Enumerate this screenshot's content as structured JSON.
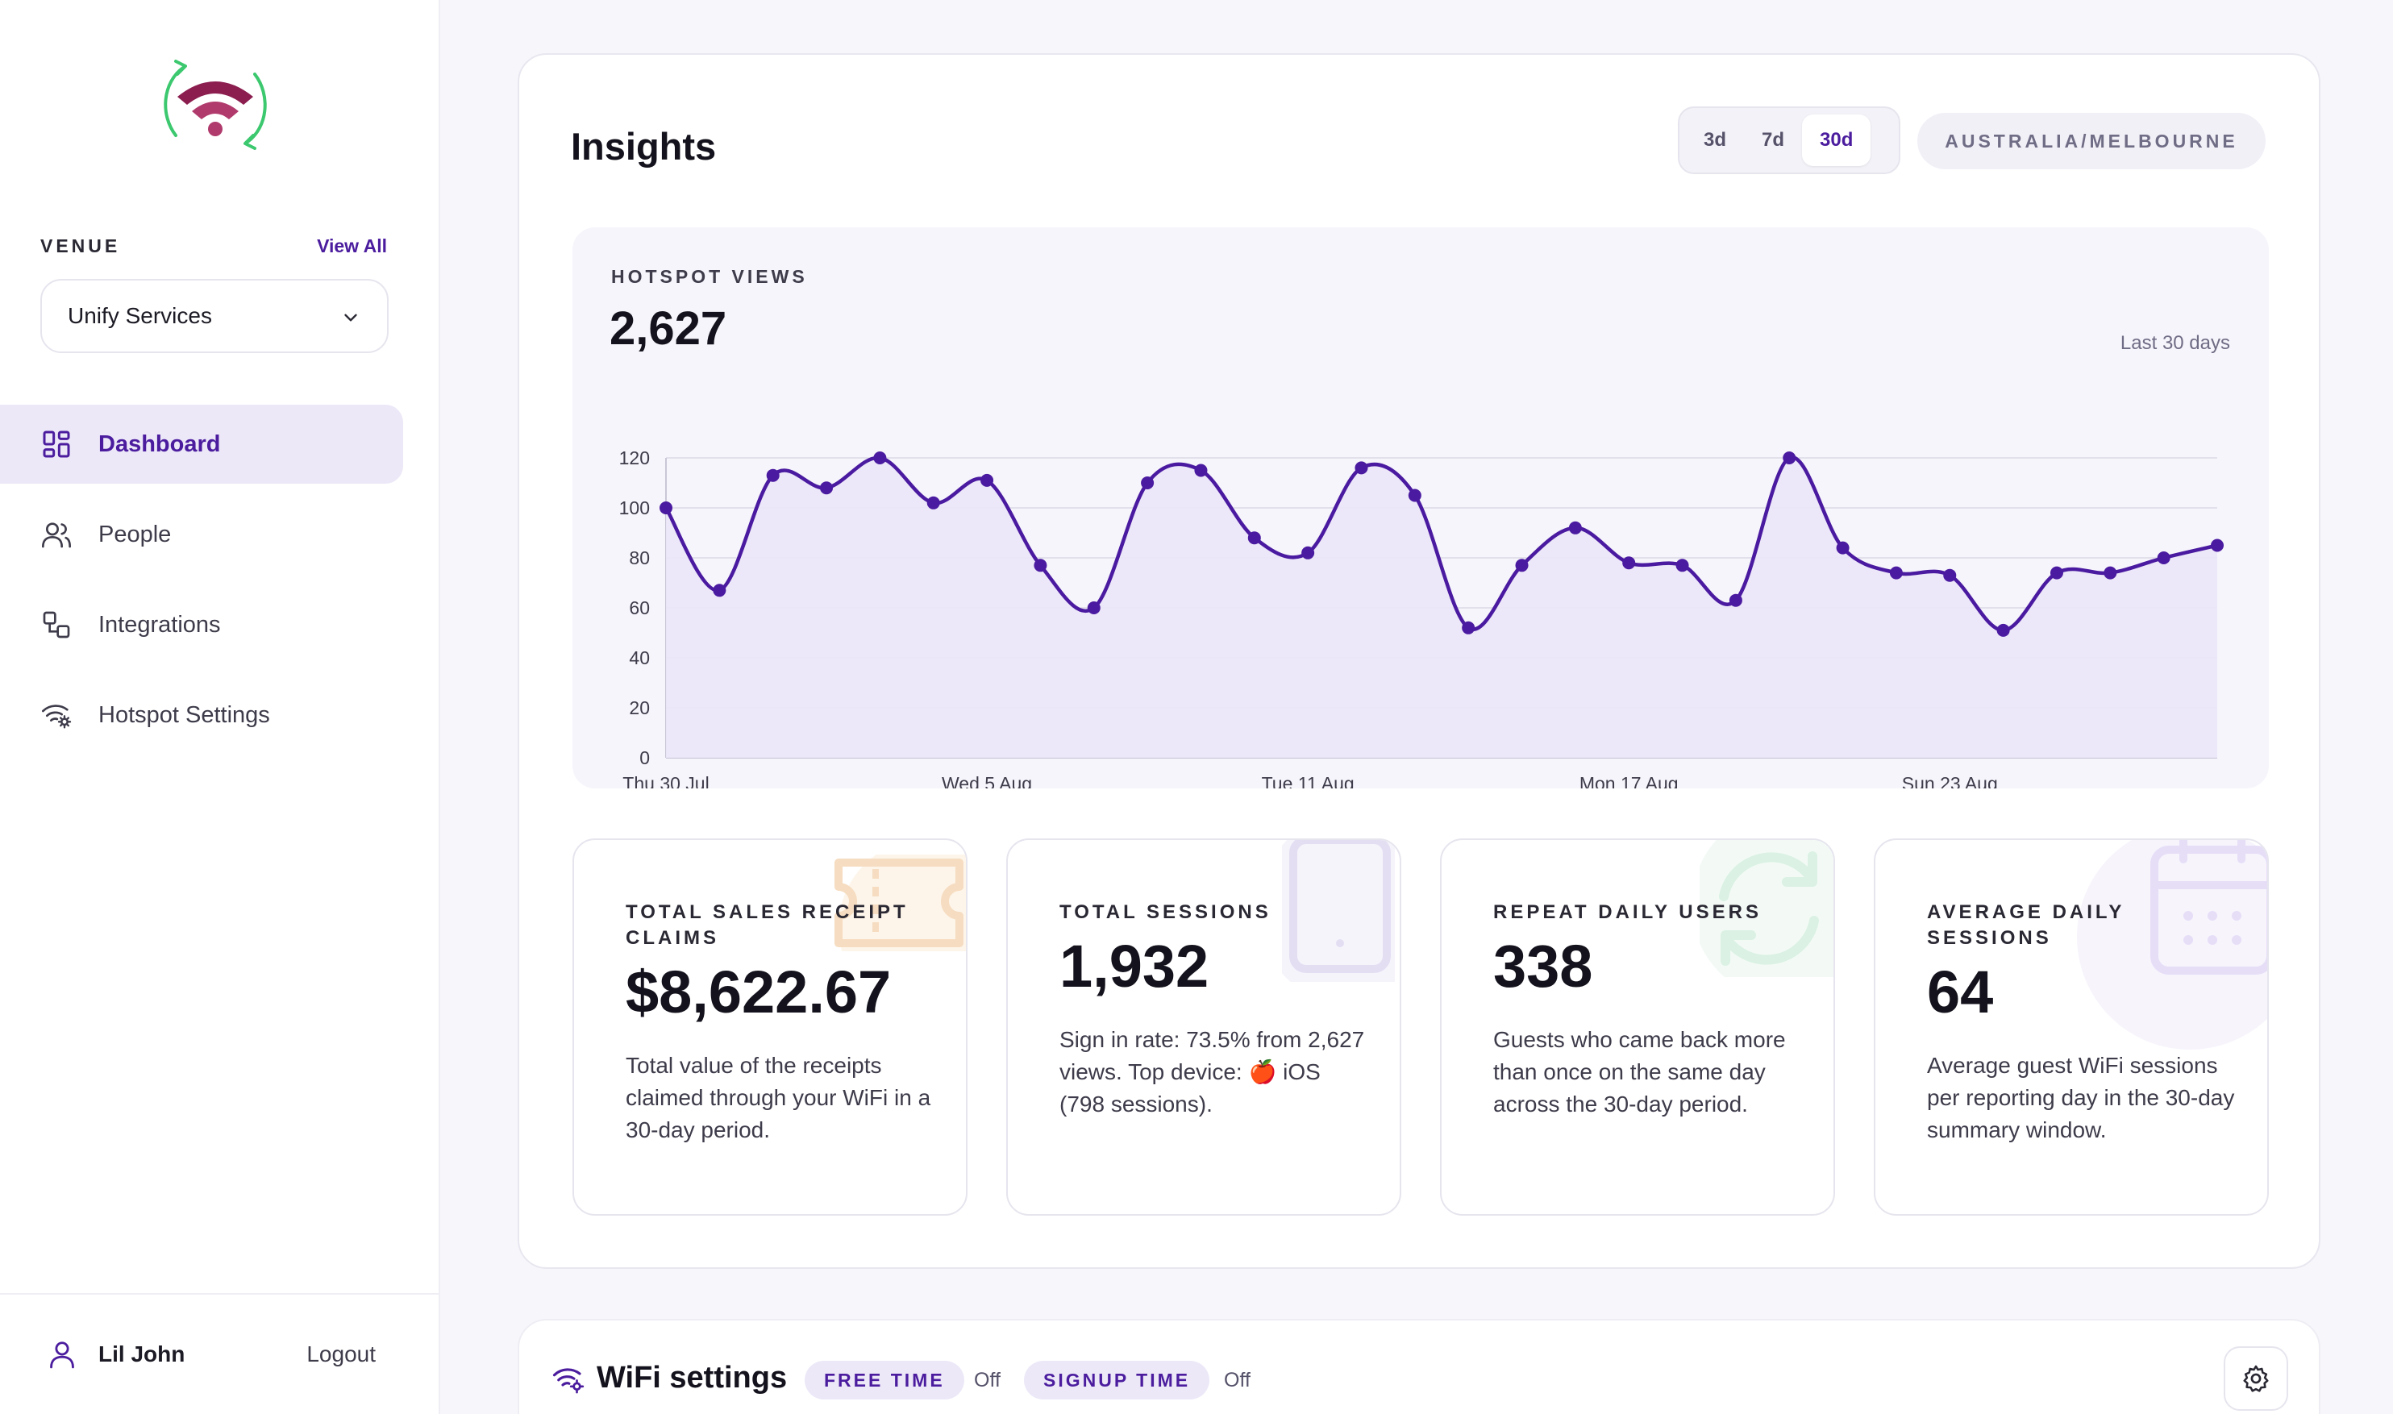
{
  "sidebar": {
    "venue_label": "VENUE",
    "view_all": "View All",
    "venue_selected": "Unify Services",
    "nav": [
      {
        "label": "Dashboard",
        "icon": "dashboard-icon",
        "active": true
      },
      {
        "label": "People",
        "icon": "people-icon",
        "active": false
      },
      {
        "label": "Integrations",
        "icon": "integrations-icon",
        "active": false
      },
      {
        "label": "Hotspot Settings",
        "icon": "hotspot-settings-icon",
        "active": false
      }
    ],
    "user_name": "Lil John",
    "logout": "Logout"
  },
  "insights": {
    "title": "Insights",
    "ranges": [
      "3d",
      "7d",
      "30d"
    ],
    "active_range": "30d",
    "timezone": "AUSTRALIA/MELBOURNE"
  },
  "chart_panel": {
    "label": "HOTSPOT VIEWS",
    "total": "2,627",
    "range_note": "Last 30 days"
  },
  "chart_data": {
    "type": "line",
    "title": "HOTSPOT VIEWS",
    "x": [
      "Thu 30 Jul",
      "Fri 31 Jul",
      "Sat 1 Aug",
      "Sun 2 Aug",
      "Mon 3 Aug",
      "Tue 4 Aug",
      "Wed 5 Aug",
      "Thu 6 Aug",
      "Fri 7 Aug",
      "Sat 8 Aug",
      "Sun 9 Aug",
      "Mon 10 Aug",
      "Tue 11 Aug",
      "Wed 12 Aug",
      "Thu 13 Aug",
      "Fri 14 Aug",
      "Sat 15 Aug",
      "Sun 16 Aug",
      "Mon 17 Aug",
      "Tue 18 Aug",
      "Wed 19 Aug",
      "Thu 20 Aug",
      "Fri 21 Aug",
      "Sat 22 Aug",
      "Sun 23 Aug",
      "Mon 24 Aug",
      "Tue 25 Aug",
      "Wed 26 Aug",
      "Thu 27 Aug",
      "Fri 28 Aug"
    ],
    "x_tick_labels": [
      "Thu 30 Jul",
      "Wed 5 Aug",
      "Tue 11 Aug",
      "Mon 17 Aug",
      "Sun 23 Aug"
    ],
    "x_tick_indices": [
      0,
      6,
      12,
      18,
      24
    ],
    "series": [
      {
        "values": [
          100,
          67,
          113,
          108,
          120,
          102,
          111,
          77,
          60,
          110,
          115,
          88,
          82,
          116,
          105,
          52,
          77,
          92,
          78,
          77,
          63,
          120,
          84,
          74,
          73,
          51,
          74,
          74,
          80,
          85
        ],
        "color": "#4a1aa0"
      }
    ],
    "ylim": [
      0,
      120
    ],
    "yticks": [
      0,
      20,
      40,
      60,
      80,
      100,
      120
    ],
    "grid": true,
    "fill": "#ebe6f8"
  },
  "stats": [
    {
      "label": "TOTAL SALES RECEIPT CLAIMS",
      "value": "$8,622.67",
      "desc": "Total value of the receipts claimed through your WiFi in a 30-day period.",
      "icon": "receipt-icon",
      "tint": "#fbeede"
    },
    {
      "label": "TOTAL SESSIONS",
      "value": "1,932",
      "desc": "Sign in rate: 73.5% from 2,627 views. Top device: 🍎 iOS (798 sessions).",
      "icon": "tablet-icon",
      "tint": "#ece8f5"
    },
    {
      "label": "REPEAT DAILY USERS",
      "value": "338",
      "desc": "Guests who came back more than once on the same day across the 30-day period.",
      "icon": "refresh-icon",
      "tint": "#e6f5ee"
    },
    {
      "label": "AVERAGE DAILY SESSIONS",
      "value": "64",
      "desc": "Average guest WiFi sessions per reporting day in the 30-day summary window.",
      "icon": "calendar-icon",
      "tint": "#ede8f9"
    }
  ],
  "wifi": {
    "title": "WiFi settings",
    "free_time_label": "FREE TIME",
    "free_time_state": "Off",
    "signup_time_label": "SIGNUP TIME",
    "signup_time_state": "Off"
  },
  "colors": {
    "accent": "#4b1d9e",
    "logo_wifi": "#8b1d4f",
    "logo_arrows": "#3cc86e"
  }
}
